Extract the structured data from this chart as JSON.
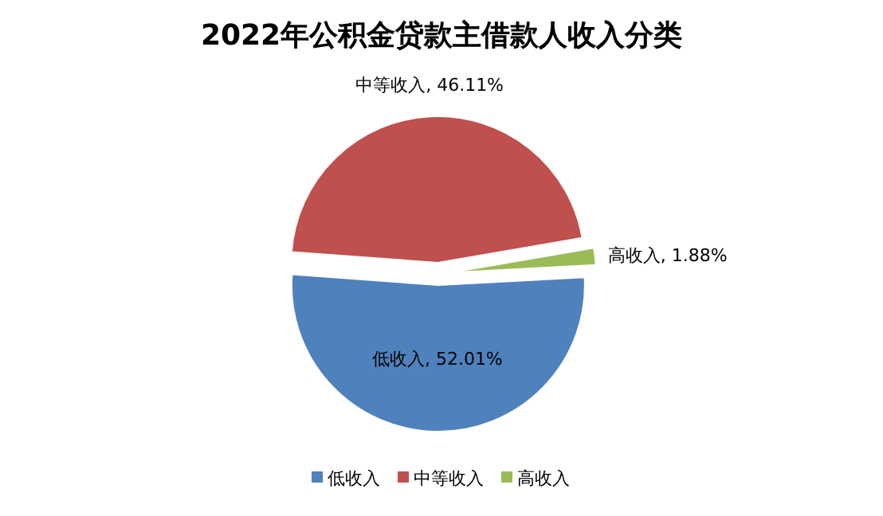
{
  "chart_data": {
    "type": "pie",
    "title": "2022年公积金贷款主借款人收入分类",
    "categories": [
      "低收入",
      "中等收入",
      "高收入"
    ],
    "values": [
      52.01,
      46.11,
      1.88
    ],
    "colors": [
      "#4f81bd",
      "#c0504d",
      "#9bbb59"
    ],
    "value_labels": [
      ", 52.01%",
      ", 46.11%",
      ", 1.88%"
    ],
    "legend": "bottom"
  }
}
